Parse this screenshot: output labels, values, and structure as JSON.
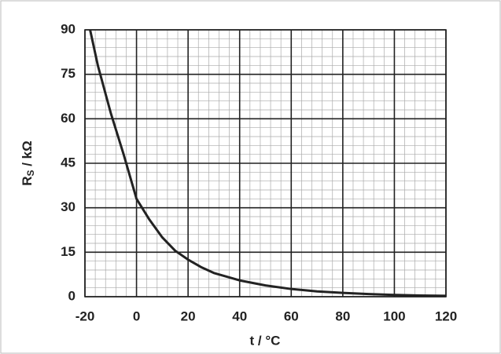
{
  "chart_data": {
    "type": "line",
    "ylabel": {
      "main": "R",
      "sub": "S",
      "rest": " / kΩ"
    },
    "xlabel": "t / °C",
    "x": [
      -18,
      -15,
      -10,
      -5,
      0,
      5,
      10,
      15,
      20,
      25,
      30,
      40,
      50,
      60,
      70,
      80,
      90,
      100,
      110,
      120
    ],
    "series": [
      {
        "color": "#222222",
        "values": [
          90,
          78,
          62,
          48,
          33,
          26,
          20,
          15.5,
          12.5,
          10,
          8,
          5.5,
          3.8,
          2.6,
          1.8,
          1.3,
          0.9,
          0.6,
          0.4,
          0.3
        ]
      }
    ],
    "xlim": [
      -20,
      120
    ],
    "xticks": [
      -20,
      0,
      20,
      40,
      60,
      80,
      100,
      120
    ],
    "ylim": [
      0,
      90
    ],
    "yticks": [
      0,
      15,
      30,
      45,
      60,
      75,
      90
    ],
    "grid": true,
    "minor_grid": {
      "x": 4,
      "y": 3
    }
  }
}
